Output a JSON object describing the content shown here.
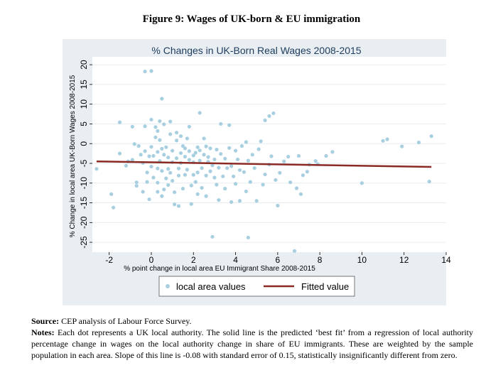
{
  "figure_title": "Figure 9: Wages of UK-born & EU immigration",
  "source_label": "Source:",
  "source_text": "CEP analysis of Labour Force Survey.",
  "notes_label": "Notes:",
  "notes_text": "Each dot represents a UK local authority. The solid line is the predicted ‘best fit’ from a regression of local authority percentage change in wages on the local authority change in share of EU immigrants. These are weighted by the sample population in each area. Slope of this line is -0.08 with standard error of 0.15, statistically insignificantly different from zero.",
  "colors": {
    "panel": "#e9eef2",
    "plot": "#ffffff",
    "dot": "#a7cfe0",
    "line": "#8b2a24"
  },
  "chart_data": {
    "type": "scatter",
    "title": "% Changes in UK-Born Real Wages 2008-2015",
    "xlabel": "% point change in local area EU Immigrant Share 2008-2015",
    "ylabel": "% Change in local area UK-Born Wages 2008-2015",
    "xlim": [
      -2.8,
      14
    ],
    "ylim": [
      -27.5,
      22
    ],
    "xticks": [
      "-2",
      "0",
      "2",
      "4",
      "6",
      "8",
      "10",
      "12",
      "14"
    ],
    "xtick_values": [
      -2,
      0,
      2,
      4,
      6,
      8,
      10,
      12,
      14
    ],
    "yticks": [
      "20",
      "15",
      "10",
      "5",
      "0",
      "-5",
      "-10",
      "-15",
      "-20",
      "-25"
    ],
    "ytick_values": [
      20,
      15,
      10,
      5,
      0,
      -5,
      -10,
      -15,
      -20,
      -25
    ],
    "grid": true,
    "legend": {
      "position": "bottom",
      "entries": [
        "local area values",
        "Fitted value"
      ]
    },
    "series": [
      {
        "name": "local area values",
        "type": "scatter",
        "points": [
          [
            -2.6,
            -6.4
          ],
          [
            -1.9,
            -12.8
          ],
          [
            -1.8,
            -16.2
          ],
          [
            -1.5,
            -2.5
          ],
          [
            -1.5,
            5.4
          ],
          [
            -1.2,
            -5.6
          ],
          [
            -1.1,
            -4.5
          ],
          [
            -0.9,
            4.3
          ],
          [
            -0.9,
            -4.1
          ],
          [
            -0.8,
            -0.1
          ],
          [
            -0.7,
            -9.8
          ],
          [
            -0.7,
            -10.7
          ],
          [
            -0.6,
            -0.6
          ],
          [
            -0.5,
            -2.8
          ],
          [
            -0.4,
            -4.9
          ],
          [
            -0.4,
            -12.2
          ],
          [
            -0.3,
            4.4
          ],
          [
            -0.3,
            -1.9
          ],
          [
            -0.3,
            18.3
          ],
          [
            -0.2,
            -7.3
          ],
          [
            -0.2,
            -9.7
          ],
          [
            -0.1,
            -3.2
          ],
          [
            -0.1,
            -14.1
          ],
          [
            0.0,
            18.4
          ],
          [
            0.0,
            6.1
          ],
          [
            0.0,
            -0.8
          ],
          [
            0.0,
            -5.8
          ],
          [
            0.1,
            -8.6
          ],
          [
            0.1,
            -3.1
          ],
          [
            0.2,
            1.6
          ],
          [
            0.2,
            4.2
          ],
          [
            0.3,
            3.2
          ],
          [
            0.3,
            -2.1
          ],
          [
            0.3,
            -6.3
          ],
          [
            0.3,
            -9.9
          ],
          [
            0.3,
            -12.2
          ],
          [
            0.4,
            5.7
          ],
          [
            0.4,
            0.9
          ],
          [
            0.4,
            -4.4
          ],
          [
            0.5,
            -1.3
          ],
          [
            0.5,
            -6.9
          ],
          [
            0.5,
            -13.3
          ],
          [
            0.5,
            11.4
          ],
          [
            0.6,
            4.9
          ],
          [
            0.6,
            -2.8
          ],
          [
            0.6,
            -11.6
          ],
          [
            0.7,
            -0.9
          ],
          [
            0.7,
            -8.8
          ],
          [
            0.8,
            -3.5
          ],
          [
            0.8,
            -6.4
          ],
          [
            0.8,
            -10.5
          ],
          [
            0.9,
            5.6
          ],
          [
            0.9,
            2.4
          ],
          [
            0.9,
            -7.4
          ],
          [
            1.0,
            -1.8
          ],
          [
            1.0,
            -4.7
          ],
          [
            1.0,
            -9.4
          ],
          [
            1.1,
            -15.4
          ],
          [
            1.1,
            -12.3
          ],
          [
            1.2,
            0.8
          ],
          [
            1.2,
            2.8
          ],
          [
            1.2,
            -3.7
          ],
          [
            1.3,
            -6.3
          ],
          [
            1.3,
            -8.1
          ],
          [
            1.3,
            -15.8
          ],
          [
            1.4,
            1.9
          ],
          [
            1.4,
            -2.4
          ],
          [
            1.4,
            -4.9
          ],
          [
            1.5,
            -11.4
          ],
          [
            1.5,
            -0.6
          ],
          [
            1.6,
            -1.2
          ],
          [
            1.6,
            -3.3
          ],
          [
            1.6,
            -7.9
          ],
          [
            1.7,
            1.3
          ],
          [
            1.7,
            -6.6
          ],
          [
            1.8,
            4.3
          ],
          [
            1.8,
            -1.9
          ],
          [
            1.8,
            -4.1
          ],
          [
            1.9,
            -10.6
          ],
          [
            1.9,
            -15.3
          ],
          [
            2.0,
            -3.0
          ],
          [
            2.0,
            -4.7
          ],
          [
            2.0,
            -7.9
          ],
          [
            2.1,
            -2.3
          ],
          [
            2.1,
            -9.7
          ],
          [
            2.2,
            -0.9
          ],
          [
            2.2,
            -7.3
          ],
          [
            2.2,
            -12.8
          ],
          [
            2.3,
            -1.7
          ],
          [
            2.3,
            7.8
          ],
          [
            2.3,
            -4.3
          ],
          [
            2.4,
            -6.2
          ],
          [
            2.4,
            -11.2
          ],
          [
            2.5,
            -2.8
          ],
          [
            2.5,
            1.3
          ],
          [
            2.6,
            -0.7
          ],
          [
            2.6,
            -8.1
          ],
          [
            2.6,
            -13.3
          ],
          [
            2.7,
            -3.4
          ],
          [
            2.7,
            -4.6
          ],
          [
            2.8,
            -1.2
          ],
          [
            2.8,
            -7.0
          ],
          [
            2.9,
            -23.6
          ],
          [
            2.9,
            -5.5
          ],
          [
            3.0,
            -4.0
          ],
          [
            3.0,
            -8.6
          ],
          [
            3.1,
            -1.5
          ],
          [
            3.1,
            -10.4
          ],
          [
            3.2,
            -6.1
          ],
          [
            3.2,
            -14.3
          ],
          [
            3.3,
            5.0
          ],
          [
            3.3,
            -2.6
          ],
          [
            3.4,
            -8.3
          ],
          [
            3.5,
            -3.8
          ],
          [
            3.5,
            -11.4
          ],
          [
            3.6,
            -6.2
          ],
          [
            3.7,
            4.7
          ],
          [
            3.7,
            -1.1
          ],
          [
            3.8,
            -5.7
          ],
          [
            3.8,
            -14.8
          ],
          [
            3.9,
            -8.3
          ],
          [
            4.0,
            -1.8
          ],
          [
            4.0,
            -10.2
          ],
          [
            4.1,
            -4.0
          ],
          [
            4.2,
            -6.7
          ],
          [
            4.2,
            -14.5
          ],
          [
            4.3,
            -0.6
          ],
          [
            4.4,
            -7.2
          ],
          [
            4.5,
            -12.1
          ],
          [
            4.5,
            0.4
          ],
          [
            4.6,
            -23.8
          ],
          [
            4.6,
            -4.3
          ],
          [
            4.7,
            -9.7
          ],
          [
            4.8,
            -2.8
          ],
          [
            4.9,
            -6.2
          ],
          [
            5.0,
            -14.5
          ],
          [
            5.1,
            -1.4
          ],
          [
            5.2,
            0.6
          ],
          [
            5.3,
            -10.4
          ],
          [
            5.4,
            -7.8
          ],
          [
            5.4,
            5.9
          ],
          [
            5.6,
            -5.3
          ],
          [
            5.6,
            7.0
          ],
          [
            5.7,
            -3.2
          ],
          [
            5.8,
            7.7
          ],
          [
            5.9,
            -9.2
          ],
          [
            6.0,
            -15.7
          ],
          [
            6.1,
            -7.4
          ],
          [
            6.3,
            -4.5
          ],
          [
            6.5,
            -3.3
          ],
          [
            6.6,
            -9.8
          ],
          [
            6.8,
            -27.2
          ],
          [
            6.9,
            -11.3
          ],
          [
            7.0,
            -3.1
          ],
          [
            7.1,
            -12.8
          ],
          [
            7.2,
            -8.0
          ],
          [
            7.4,
            -7.1
          ],
          [
            7.5,
            -5.3
          ],
          [
            7.8,
            -4.4
          ],
          [
            7.9,
            -5.2
          ],
          [
            8.3,
            -3.1
          ],
          [
            8.6,
            -2.1
          ],
          [
            10.0,
            -10.0
          ],
          [
            11.0,
            0.7
          ],
          [
            11.2,
            1.1
          ],
          [
            11.9,
            -0.7
          ],
          [
            12.7,
            0.3
          ],
          [
            13.2,
            -9.6
          ],
          [
            13.3,
            1.9
          ]
        ]
      },
      {
        "name": "Fitted value",
        "type": "line",
        "points": [
          [
            -2.6,
            -4.5
          ],
          [
            13.3,
            -5.9
          ]
        ]
      }
    ]
  }
}
